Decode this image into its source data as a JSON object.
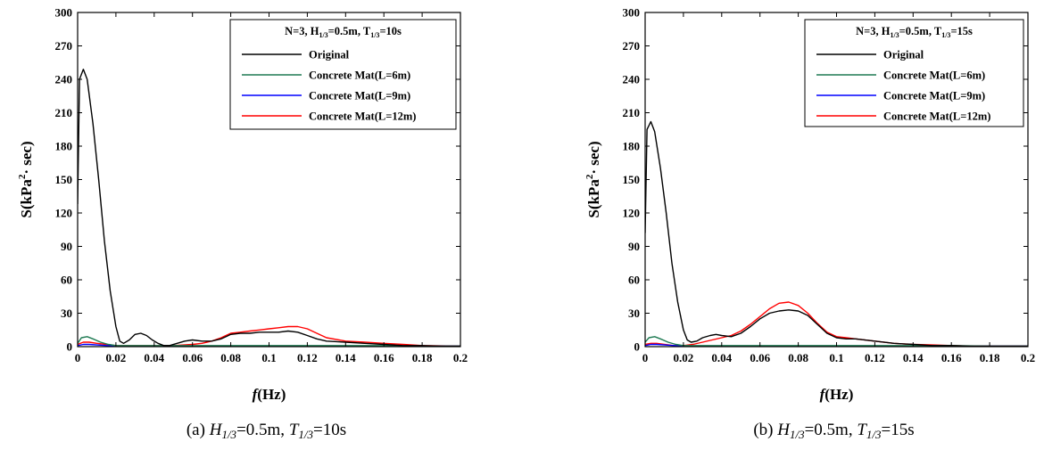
{
  "chart_data": [
    {
      "type": "line",
      "legend_title": "N=3, H1/3=0.5m, T1/3=10s",
      "caption": "(a) H1/3=0.5m, T1/3=10s",
      "xlabel": "f(Hz)",
      "ylabel": "S(kPa²·sec)",
      "xlim": [
        0,
        0.2
      ],
      "ylim": [
        0,
        300
      ],
      "xticks": [
        "0",
        "0.02",
        "0.04",
        "0.06",
        "0.08",
        "0.1",
        "0.12",
        "0.14",
        "0.16",
        "0.18",
        "0.2"
      ],
      "yticks": [
        "0",
        "30",
        "60",
        "90",
        "120",
        "150",
        "180",
        "210",
        "240",
        "270",
        "300"
      ],
      "grid": false,
      "legend_position": "top-right",
      "series": [
        {
          "name": "Original",
          "color": "#000000",
          "x": [
            0,
            0.001,
            0.003,
            0.005,
            0.008,
            0.011,
            0.014,
            0.017,
            0.02,
            0.022,
            0.024,
            0.027,
            0.03,
            0.033,
            0.036,
            0.039,
            0.042,
            0.045,
            0.048,
            0.052,
            0.056,
            0.06,
            0.065,
            0.07,
            0.075,
            0.08,
            0.085,
            0.09,
            0.095,
            0.1,
            0.105,
            0.11,
            0.115,
            0.12,
            0.125,
            0.13,
            0.14,
            0.15,
            0.16,
            0.17,
            0.18,
            0.19,
            0.2
          ],
          "y": [
            128,
            240,
            249,
            240,
            200,
            150,
            95,
            50,
            18,
            5,
            3,
            6,
            11,
            12,
            10,
            6,
            3,
            1,
            1,
            3,
            5,
            6,
            5,
            5,
            7,
            11,
            12,
            12,
            13,
            13,
            13,
            14,
            13,
            10,
            7,
            5,
            4,
            3,
            2,
            1,
            1,
            0.5,
            0.5
          ]
        },
        {
          "name": "Concrete Mat(L=6m)",
          "color": "#1e7a52",
          "x": [
            0,
            0.002,
            0.005,
            0.008,
            0.012,
            0.016,
            0.02,
            0.025,
            0.03,
            0.04,
            0.05,
            0.06,
            0.07,
            0.08,
            0.1,
            0.12,
            0.14,
            0.16,
            0.18,
            0.2
          ],
          "y": [
            3,
            8,
            9,
            7,
            4,
            2,
            1,
            1,
            1,
            1,
            1,
            1,
            1,
            1,
            1,
            1,
            1,
            1,
            0.5,
            0.5
          ]
        },
        {
          "name": "Concrete Mat(L=9m)",
          "color": "#0000ff",
          "x": [
            0,
            0.003,
            0.006,
            0.01,
            0.015,
            0.02,
            0.03,
            0.04,
            0.05,
            0.06,
            0.08,
            0.1,
            0.12,
            0.14,
            0.16,
            0.18,
            0.2
          ],
          "y": [
            1,
            2,
            2,
            1.5,
            1,
            0.5,
            0.5,
            0.5,
            0.5,
            0.5,
            0.5,
            0.5,
            0.5,
            0.5,
            0.5,
            0.5,
            0.5
          ]
        },
        {
          "name": "Concrete Mat(L=12m)",
          "color": "#ff0000",
          "x": [
            0,
            0.003,
            0.006,
            0.01,
            0.015,
            0.02,
            0.03,
            0.04,
            0.05,
            0.06,
            0.065,
            0.07,
            0.075,
            0.08,
            0.085,
            0.09,
            0.095,
            0.1,
            0.105,
            0.11,
            0.115,
            0.12,
            0.125,
            0.13,
            0.14,
            0.15,
            0.16,
            0.17,
            0.18,
            0.2
          ],
          "y": [
            2,
            4,
            4,
            3,
            2,
            1,
            1,
            1,
            1,
            2,
            3,
            5,
            8,
            12,
            13,
            14,
            15,
            16,
            17,
            18,
            18,
            16,
            12,
            8,
            5,
            4,
            3,
            2,
            1,
            0.5
          ]
        }
      ]
    },
    {
      "type": "line",
      "legend_title": "N=3, H1/3=0.5m, T1/3=15s",
      "caption": "(b) H1/3=0.5m, T1/3=15s",
      "xlabel": "f(Hz)",
      "ylabel": "S(kPa²·sec)",
      "xlim": [
        0,
        0.2
      ],
      "ylim": [
        0,
        300
      ],
      "xticks": [
        "0",
        "0.02",
        "0.04",
        "0.06",
        "0.08",
        "0.1",
        "0.12",
        "0.14",
        "0.16",
        "0.18",
        "0.2"
      ],
      "yticks": [
        "0",
        "30",
        "60",
        "90",
        "120",
        "150",
        "180",
        "210",
        "240",
        "270",
        "300"
      ],
      "grid": false,
      "legend_position": "top-right",
      "series": [
        {
          "name": "Original",
          "color": "#000000",
          "x": [
            0,
            0.001,
            0.003,
            0.005,
            0.008,
            0.011,
            0.014,
            0.017,
            0.02,
            0.022,
            0.024,
            0.027,
            0.03,
            0.034,
            0.037,
            0.04,
            0.045,
            0.05,
            0.055,
            0.06,
            0.065,
            0.07,
            0.075,
            0.08,
            0.085,
            0.09,
            0.095,
            0.1,
            0.105,
            0.11,
            0.12,
            0.13,
            0.14,
            0.15,
            0.16,
            0.17,
            0.18,
            0.2
          ],
          "y": [
            102,
            195,
            202,
            193,
            160,
            120,
            75,
            40,
            15,
            6,
            4,
            5,
            8,
            10,
            11,
            10,
            9,
            12,
            18,
            25,
            30,
            32,
            33,
            32,
            28,
            20,
            12,
            8,
            7,
            7,
            5,
            3,
            2,
            1,
            1,
            0.5,
            0.5,
            0.5
          ]
        },
        {
          "name": "Concrete Mat(L=6m)",
          "color": "#1e7a52",
          "x": [
            0,
            0.002,
            0.005,
            0.008,
            0.012,
            0.016,
            0.02,
            0.025,
            0.03,
            0.04,
            0.06,
            0.08,
            0.1,
            0.12,
            0.14,
            0.16,
            0.18,
            0.2
          ],
          "y": [
            4,
            8,
            9,
            7,
            4,
            2,
            1,
            1,
            1,
            1,
            1,
            1,
            1,
            1,
            1,
            1,
            0.5,
            0.5
          ]
        },
        {
          "name": "Concrete Mat(L=9m)",
          "color": "#0000ff",
          "x": [
            0,
            0.003,
            0.006,
            0.01,
            0.015,
            0.02,
            0.04,
            0.06,
            0.08,
            0.1,
            0.12,
            0.14,
            0.16,
            0.18,
            0.2
          ],
          "y": [
            1,
            2,
            2,
            1.5,
            1,
            0.5,
            0.5,
            0.5,
            0.5,
            0.5,
            0.5,
            0.5,
            0.5,
            0.5,
            0.5
          ]
        },
        {
          "name": "Concrete Mat(L=12m)",
          "color": "#ff0000",
          "x": [
            0,
            0.003,
            0.006,
            0.01,
            0.015,
            0.02,
            0.025,
            0.03,
            0.035,
            0.04,
            0.045,
            0.05,
            0.055,
            0.06,
            0.065,
            0.07,
            0.075,
            0.08,
            0.085,
            0.09,
            0.095,
            0.1,
            0.105,
            0.11,
            0.12,
            0.13,
            0.14,
            0.15,
            0.16,
            0.17,
            0.18,
            0.2
          ],
          "y": [
            2,
            3,
            3,
            2,
            1,
            1,
            2,
            4,
            6,
            8,
            10,
            14,
            20,
            27,
            34,
            39,
            40,
            37,
            30,
            21,
            13,
            9,
            8,
            7,
            5,
            3,
            2,
            1.5,
            1,
            0.5,
            0.5,
            0.5
          ]
        }
      ]
    }
  ],
  "captions": [
    {
      "label": "(a)",
      "h_sym": "H",
      "h_sub": "1/3",
      "h_val": "=0.5m,",
      "t_sym": "T",
      "t_sub": "1/3",
      "t_val": "=10s"
    },
    {
      "label": "(b)",
      "h_sym": "H",
      "h_sub": "1/3",
      "h_val": "=0.5m,",
      "t_sym": "T",
      "t_sub": "1/3",
      "t_val": "=15s"
    }
  ],
  "legends": [
    {
      "prefix": "N=3, H",
      "h_sub": "1/3",
      "mid": "=0.5m, T",
      "t_sub": "1/3",
      "suffix": "=10s"
    },
    {
      "prefix": "N=3, H",
      "h_sub": "1/3",
      "mid": "=0.5m, T",
      "t_sub": "1/3",
      "suffix": "=15s"
    }
  ],
  "axis_titles": {
    "y_main": "S(kPa",
    "y_sup": "2",
    "y_rest": "· sec)",
    "x_italic": "f",
    "x_rest": "(Hz)"
  }
}
